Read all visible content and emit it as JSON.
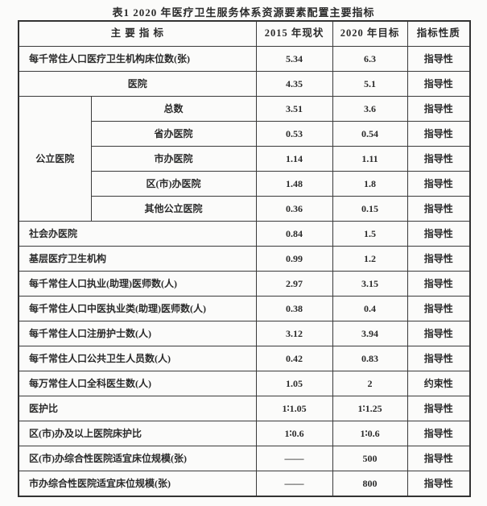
{
  "title": "表1  2020 年医疗卫生服务体系资源要素配置主要指标",
  "colors": {
    "border": "#3a3a3a",
    "text": "#2b2b2b",
    "background": "#fbfbfa"
  },
  "table": {
    "headers": [
      "主  要  指  标",
      "2015 年现状",
      "2020 年目标",
      "指标性质"
    ],
    "group_label": "公立医院",
    "rows": [
      {
        "indicator": "每千常住人口医疗卫生机构床位数(张)",
        "v2015": "5.34",
        "v2020": "6.3",
        "nature": "指导性",
        "align": "left",
        "span": "full"
      },
      {
        "indicator": "医院",
        "v2015": "4.35",
        "v2020": "5.1",
        "nature": "指导性",
        "align": "center",
        "span": "full"
      },
      {
        "indicator": "总数",
        "v2015": "3.51",
        "v2020": "3.6",
        "nature": "指导性",
        "align": "center",
        "span": "sub",
        "group_start": true
      },
      {
        "indicator": "省办医院",
        "v2015": "0.53",
        "v2020": "0.54",
        "nature": "指导性",
        "align": "center",
        "span": "sub"
      },
      {
        "indicator": "市办医院",
        "v2015": "1.14",
        "v2020": "1.11",
        "nature": "指导性",
        "align": "center",
        "span": "sub"
      },
      {
        "indicator": "区(市)办医院",
        "v2015": "1.48",
        "v2020": "1.8",
        "nature": "指导性",
        "align": "center",
        "span": "sub"
      },
      {
        "indicator": "其他公立医院",
        "v2015": "0.36",
        "v2020": "0.15",
        "nature": "指导性",
        "align": "center",
        "span": "sub"
      },
      {
        "indicator": "社会办医院",
        "v2015": "0.84",
        "v2020": "1.5",
        "nature": "指导性",
        "align": "left",
        "span": "full"
      },
      {
        "indicator": "基层医疗卫生机构",
        "v2015": "0.99",
        "v2020": "1.2",
        "nature": "指导性",
        "align": "left",
        "span": "full"
      },
      {
        "indicator": "每千常住人口执业(助理)医师数(人)",
        "v2015": "2.97",
        "v2020": "3.15",
        "nature": "指导性",
        "align": "left",
        "span": "full"
      },
      {
        "indicator": "每千常住人口中医执业类(助理)医师数(人)",
        "v2015": "0.38",
        "v2020": "0.4",
        "nature": "指导性",
        "align": "left",
        "span": "full"
      },
      {
        "indicator": "每千常住人口注册护士数(人)",
        "v2015": "3.12",
        "v2020": "3.94",
        "nature": "指导性",
        "align": "left",
        "span": "full"
      },
      {
        "indicator": "每千常住人口公共卫生人员数(人)",
        "v2015": "0.42",
        "v2020": "0.83",
        "nature": "指导性",
        "align": "left",
        "span": "full"
      },
      {
        "indicator": "每万常住人口全科医生数(人)",
        "v2015": "1.05",
        "v2020": "2",
        "nature": "约束性",
        "align": "left",
        "span": "full"
      },
      {
        "indicator": "医护比",
        "v2015": "1∶1.05",
        "v2020": "1∶1.25",
        "nature": "指导性",
        "align": "left",
        "span": "full"
      },
      {
        "indicator": "区(市)办及以上医院床护比",
        "v2015": "1∶0.6",
        "v2020": "1∶0.6",
        "nature": "指导性",
        "align": "left",
        "span": "full"
      },
      {
        "indicator": "区(市)办综合性医院适宜床位规模(张)",
        "v2015": "——",
        "v2020": "500",
        "nature": "指导性",
        "align": "left",
        "span": "full"
      },
      {
        "indicator": "市办综合性医院适宜床位规模(张)",
        "v2015": "——",
        "v2020": "800",
        "nature": "指导性",
        "align": "left",
        "span": "full"
      }
    ]
  }
}
